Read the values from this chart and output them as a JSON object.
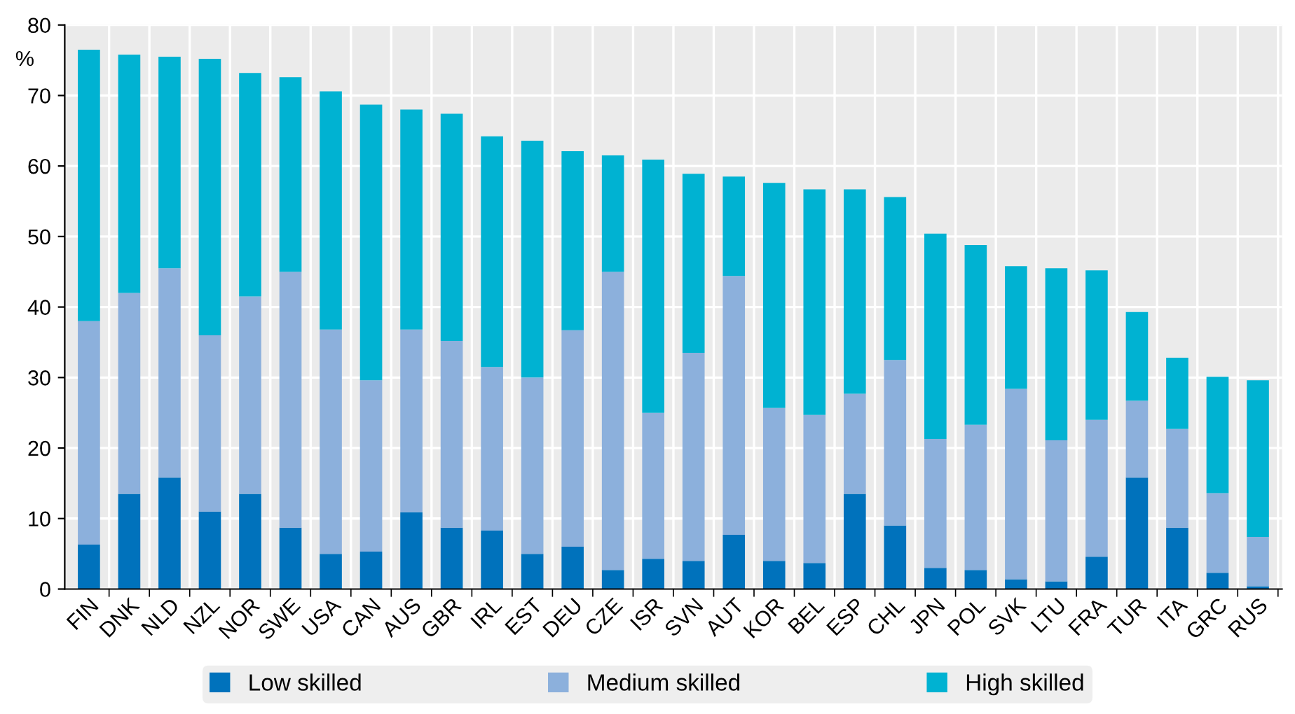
{
  "chart_data": {
    "type": "bar",
    "stacked": true,
    "ylabel": "%",
    "categories": [
      "FIN",
      "DNK",
      "NLD",
      "NZL",
      "NOR",
      "SWE",
      "USA",
      "CAN",
      "AUS",
      "GBR",
      "IRL",
      "EST",
      "DEU",
      "CZE",
      "ISR",
      "SVN",
      "AUT",
      "KOR",
      "BEL",
      "ESP",
      "CHL",
      "JPN",
      "POL",
      "SVK",
      "LTU",
      "FRA",
      "TUR",
      "ITA",
      "GRC",
      "RUS"
    ],
    "series": [
      {
        "name": "Low skilled",
        "color": "#0072bc",
        "values": [
          6.3,
          13.5,
          15.8,
          11,
          13.5,
          8.7,
          5,
          5.3,
          10.9,
          8.7,
          8.3,
          5,
          6,
          2.7,
          4.3,
          4,
          7.7,
          4,
          3.7,
          13.5,
          9,
          3,
          2.7,
          1.4,
          1.1,
          4.6,
          15.8,
          8.7,
          2.3,
          0.4
        ]
      },
      {
        "name": "Medium skilled",
        "color": "#8cb0dc",
        "values": [
          31.7,
          28.5,
          29.7,
          25,
          28,
          36.3,
          31.8,
          24.3,
          25.9,
          26.5,
          23.2,
          25,
          30.7,
          42.3,
          20.7,
          29.5,
          36.7,
          21.7,
          21,
          14.2,
          23.5,
          18.3,
          20.6,
          27,
          20,
          19.4,
          10.9,
          14,
          11.3,
          7
        ]
      },
      {
        "name": "High skilled",
        "color": "#00b2d2",
        "values": [
          38.5,
          33.8,
          30,
          39.2,
          31.7,
          27.6,
          33.8,
          39.1,
          31.2,
          32.2,
          32.7,
          33.6,
          25.4,
          16.5,
          35.9,
          25.4,
          14.1,
          31.9,
          32,
          29,
          23.1,
          29.1,
          25.5,
          17.4,
          24.4,
          21.2,
          12.6,
          10.1,
          16.5,
          22.2
        ]
      }
    ],
    "ylim": [
      0,
      80
    ],
    "yticks": [
      0,
      10,
      20,
      30,
      40,
      50,
      60,
      70,
      80
    ],
    "grid": true,
    "legend": "bottom"
  }
}
